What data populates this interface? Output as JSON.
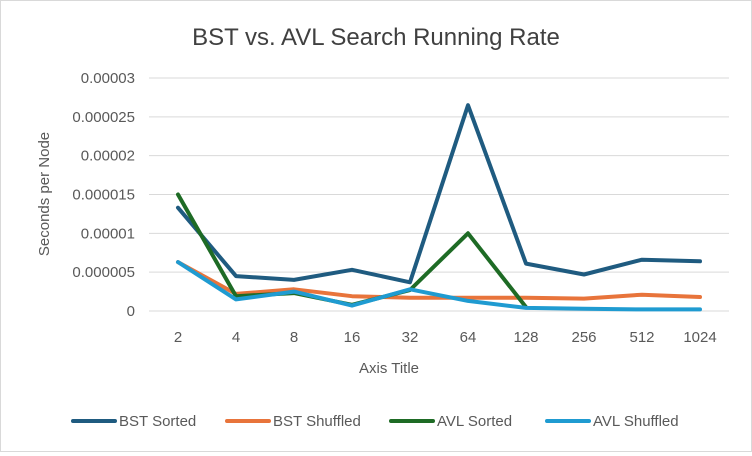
{
  "chart_data": {
    "type": "line",
    "title": "BST vs. AVL Search Running Rate",
    "xlabel": "Axis Title",
    "ylabel": "Seconds per Node",
    "categories": [
      "2",
      "4",
      "8",
      "16",
      "32",
      "64",
      "128",
      "256",
      "512",
      "1024"
    ],
    "ylim": [
      0,
      3e-05
    ],
    "yticks": [
      "0",
      "0.000005",
      "0.00001",
      "0.000015",
      "0.00002",
      "0.000025",
      "0.00003"
    ],
    "grid": true,
    "legend_position": "bottom",
    "series": [
      {
        "name": "BST Sorted",
        "color": "#1f5b80",
        "values": [
          1.33e-05,
          4.5e-06,
          4e-06,
          5.3e-06,
          3.7e-06,
          2.65e-05,
          6.1e-06,
          4.7e-06,
          6.6e-06,
          6.4e-06
        ]
      },
      {
        "name": "BST Shuffled",
        "color": "#e8743b",
        "values": [
          6.3e-06,
          2.2e-06,
          2.8e-06,
          1.9e-06,
          1.7e-06,
          1.7e-06,
          1.7e-06,
          1.6e-06,
          2.1e-06,
          1.8e-06
        ]
      },
      {
        "name": "AVL Sorted",
        "color": "#1e6b25",
        "values": [
          1.5e-05,
          1.9e-06,
          2.3e-06,
          8e-07,
          2.7e-06,
          1e-05,
          5e-07,
          null,
          null,
          null
        ]
      },
      {
        "name": "AVL Shuffled",
        "color": "#1f9bd1",
        "values": [
          6.3e-06,
          1.5e-06,
          2.5e-06,
          7e-07,
          2.8e-06,
          1.3e-06,
          4e-07,
          3e-07,
          2e-07,
          2e-07
        ]
      }
    ]
  }
}
